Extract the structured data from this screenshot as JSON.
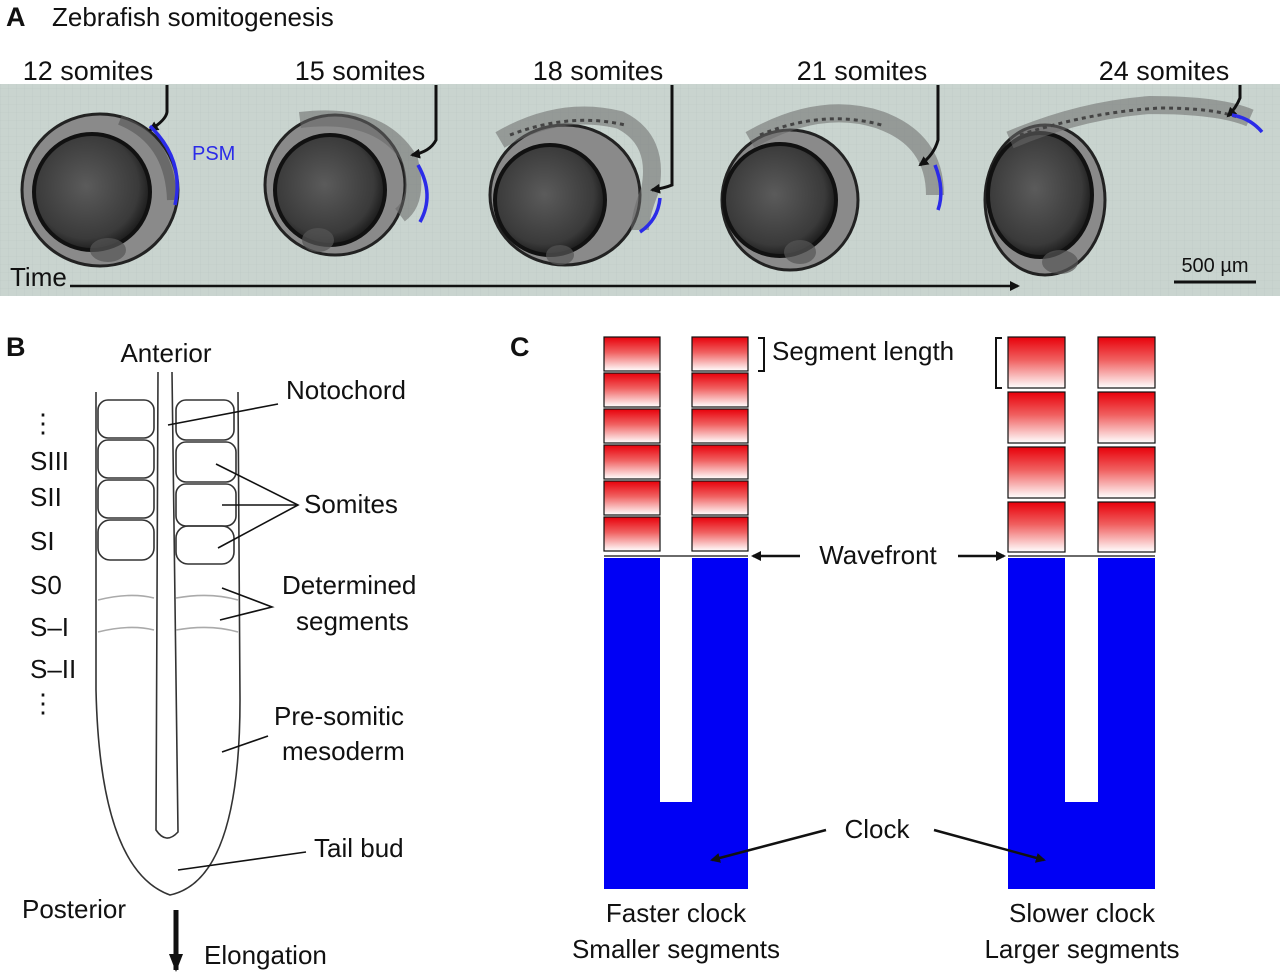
{
  "panel_a": {
    "letter": "A",
    "title": "Zebrafish somitogenesis",
    "stages": [
      {
        "label": "12 somites"
      },
      {
        "label": "15 somites"
      },
      {
        "label": "18 somites"
      },
      {
        "label": "21 somites"
      },
      {
        "label": "24 somites"
      }
    ],
    "psm_label": "PSM",
    "time_label": "Time",
    "scale_label": "500 µm",
    "psm_color": "#2b2be8",
    "background_color": "#c9d4cf"
  },
  "panel_b": {
    "letter": "B",
    "anterior": "Anterior",
    "posterior": "Posterior",
    "elongation": "Elongation",
    "notochord": "Notochord",
    "somites": "Somites",
    "determined_1": "Determined",
    "determined_2": "segments",
    "psm_1": "Pre-somitic",
    "psm_2": "mesoderm",
    "tail_bud": "Tail bud",
    "dots_top": "⋮",
    "dots_bottom": "⋮",
    "s_labels": [
      "SIII",
      "SII",
      "SI",
      "S0",
      "S–I",
      "S–II"
    ]
  },
  "panel_c": {
    "letter": "C",
    "segment_length": "Segment length",
    "wavefront": "Wavefront",
    "clock": "Clock",
    "left_caption_1": "Faster clock",
    "left_caption_2": "Smaller segments",
    "right_caption_1": "Slower clock",
    "right_caption_2": "Larger segments",
    "clock_color": "#0000f5",
    "segment_color": "#e8000a"
  }
}
